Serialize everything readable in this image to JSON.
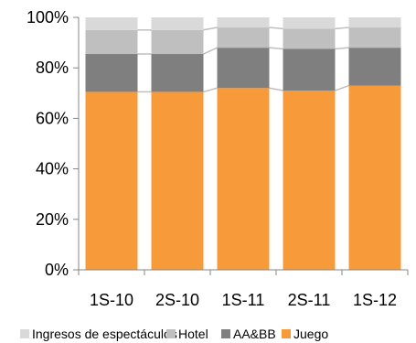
{
  "chart_data": {
    "type": "bar",
    "stacked": true,
    "normalized": true,
    "title": "",
    "xlabel": "",
    "ylabel": "",
    "ylim": [
      0,
      100
    ],
    "y_ticks": [
      "0%",
      "20%",
      "40%",
      "60%",
      "80%",
      "100%"
    ],
    "categories": [
      "1S-10",
      "2S-10",
      "1S-11",
      "2S-11",
      "1S-12"
    ],
    "series": [
      {
        "name": "Juego",
        "color": "#F79A3A",
        "values": [
          70.5,
          70.5,
          72,
          71,
          73
        ]
      },
      {
        "name": "AA&BB",
        "color": "#7F7F7F",
        "values": [
          15,
          15,
          16,
          16.5,
          15
        ]
      },
      {
        "name": "Hotel",
        "color": "#BFBFBF",
        "values": [
          9.5,
          9.5,
          8,
          8,
          8
        ]
      },
      {
        "name": "Ingresos de espectáculos",
        "color": "#D9D9D9",
        "values": [
          5,
          5,
          4,
          4.5,
          4
        ]
      }
    ],
    "legend_order": [
      "Ingresos de espectáculos",
      "Hotel",
      "AA&BB",
      "Juego"
    ],
    "legend_position": "bottom",
    "connector_lines": true,
    "grid": false
  }
}
